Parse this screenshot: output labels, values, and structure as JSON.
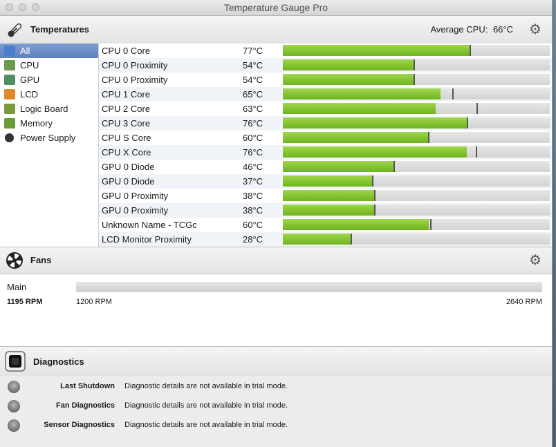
{
  "window": {
    "title": "Temperature Gauge Pro"
  },
  "temperatures": {
    "title": "Temperatures",
    "average_label": "Average CPU:",
    "average_value": "66°C",
    "sidebar": [
      {
        "label": "All",
        "icon": "display-icon",
        "color": "#4a7fd0",
        "selected": true
      },
      {
        "label": "CPU",
        "icon": "cpu-chip-icon",
        "color": "#6a9a4a",
        "selected": false
      },
      {
        "label": "GPU",
        "icon": "gpu-chip-icon",
        "color": "#4f8f5f",
        "selected": false
      },
      {
        "label": "LCD",
        "icon": "lcd-icon",
        "color": "#e0892a",
        "selected": false
      },
      {
        "label": "Logic Board",
        "icon": "logic-board-icon",
        "color": "#7a9a3a",
        "selected": false
      },
      {
        "label": "Memory",
        "icon": "memory-icon",
        "color": "#6a9a3a",
        "selected": false
      },
      {
        "label": "Power Supply",
        "icon": "power-icon",
        "color": "#333333",
        "selected": false
      }
    ],
    "sensors": [
      {
        "name": "CPU 0 Core",
        "value": "77°C",
        "fill_pct": 70.2,
        "marker_pct": 70.2
      },
      {
        "name": "CPU 0 Proximity",
        "value": "54°C",
        "fill_pct": 49.2,
        "marker_pct": 49.2
      },
      {
        "name": "CPU 0 Proximity",
        "value": "54°C",
        "fill_pct": 49.2,
        "marker_pct": 49.2
      },
      {
        "name": "CPU 1 Core",
        "value": "65°C",
        "fill_pct": 59.1,
        "marker_pct": 63.7
      },
      {
        "name": "CPU 2 Core",
        "value": "63°C",
        "fill_pct": 57.3,
        "marker_pct": 72.8
      },
      {
        "name": "CPU 3 Core",
        "value": "76°C",
        "fill_pct": 69.2,
        "marker_pct": 69.2
      },
      {
        "name": "CPU S Core",
        "value": "60°C",
        "fill_pct": 54.6,
        "marker_pct": 54.6
      },
      {
        "name": "CPU X Core",
        "value": "76°C",
        "fill_pct": 68.9,
        "marker_pct": 72.5
      },
      {
        "name": "GPU 0 Diode",
        "value": "46°C",
        "fill_pct": 41.7,
        "marker_pct": 41.7
      },
      {
        "name": "GPU 0 Diode",
        "value": "37°C",
        "fill_pct": 33.7,
        "marker_pct": 33.7
      },
      {
        "name": "GPU 0 Proximity",
        "value": "38°C",
        "fill_pct": 34.5,
        "marker_pct": 34.5
      },
      {
        "name": "GPU 0 Proximity",
        "value": "38°C",
        "fill_pct": 34.5,
        "marker_pct": 34.5
      },
      {
        "name": "Unknown Name - TCGc",
        "value": "60°C",
        "fill_pct": 54.7,
        "marker_pct": 55.4
      },
      {
        "name": "LCD Monitor Proximity",
        "value": "28°C",
        "fill_pct": 25.7,
        "marker_pct": 25.7
      }
    ]
  },
  "fans": {
    "title": "Fans",
    "items": [
      {
        "name": "Main",
        "rpm": "1195 RPM",
        "min": "1200 RPM",
        "max": "2640 RPM"
      }
    ]
  },
  "diagnostics": {
    "title": "Diagnostics",
    "items": [
      {
        "name": "Last Shutdown",
        "text": "Diagnostic details are not available in trial mode."
      },
      {
        "name": "Fan Diagnostics",
        "text": "Diagnostic details are not available in trial mode."
      },
      {
        "name": "Sensor Diagnostics",
        "text": "Diagnostic details are not available in trial mode."
      }
    ]
  }
}
